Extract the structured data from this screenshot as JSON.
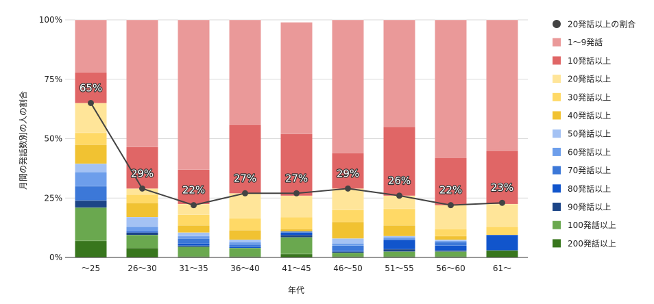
{
  "chart_data": {
    "type": "bar",
    "stacked": true,
    "xlabel": "年代",
    "ylabel": "月間の発話数別の人の割合",
    "ylim": [
      0,
      100
    ],
    "yticks": [
      "0%",
      "25%",
      "50%",
      "75%",
      "100%"
    ],
    "categories": [
      "〜25",
      "26〜30",
      "31〜35",
      "36〜40",
      "41〜45",
      "46〜50",
      "51〜55",
      "56〜60",
      "61〜"
    ],
    "series": [
      {
        "name": "200発話以上",
        "color": "#38761d",
        "values": [
          7,
          4,
          0.5,
          0.5,
          1.5,
          0.5,
          0.5,
          0.5,
          3
        ]
      },
      {
        "name": "100発話以上",
        "color": "#6aa84f",
        "values": [
          14,
          5.5,
          4,
          3.5,
          7,
          1.5,
          2,
          2,
          0
        ]
      },
      {
        "name": "90発話以上",
        "color": "#1c4587",
        "values": [
          3,
          1,
          0.5,
          0,
          1,
          0.5,
          1,
          0.5,
          0
        ]
      },
      {
        "name": "80発話以上",
        "color": "#1155cc",
        "values": [
          0,
          0.5,
          1,
          0.5,
          1,
          0.5,
          4,
          2,
          6.5
        ]
      },
      {
        "name": "70発話以上",
        "color": "#3c78d8",
        "values": [
          6,
          0,
          2,
          1,
          0.5,
          2,
          0,
          1.5,
          0
        ]
      },
      {
        "name": "60発話以上",
        "color": "#6d9eeb",
        "values": [
          6,
          2,
          1,
          1,
          0,
          1,
          1,
          0.5,
          0
        ]
      },
      {
        "name": "50発話以上",
        "color": "#a4c2f4",
        "values": [
          3.5,
          4,
          1.5,
          1,
          0,
          2,
          0.5,
          0.5,
          0
        ]
      },
      {
        "name": "40発話以上",
        "color": "#f1c232",
        "values": [
          8,
          6,
          3,
          4,
          1,
          7,
          4.5,
          1.5,
          0
        ]
      },
      {
        "name": "30発話以上",
        "color": "#ffd966",
        "values": [
          5,
          3.5,
          4.5,
          5,
          5,
          5,
          7,
          3,
          3.5
        ]
      },
      {
        "name": "20発話以上",
        "color": "#ffe599",
        "values": [
          12.5,
          2.5,
          4.5,
          10.5,
          9,
          9,
          5.5,
          10,
          9.5
        ]
      },
      {
        "name": "10発話以上",
        "color": "#e06666",
        "values": [
          13,
          17.5,
          14.5,
          29,
          26,
          15,
          29,
          20,
          22.5
        ]
      },
      {
        "name": "1〜9発話",
        "color": "#ea9999",
        "values": [
          22,
          53.5,
          63,
          44,
          47,
          56,
          45,
          58,
          55
        ]
      }
    ],
    "line_series": {
      "name": "20発話以上の割合",
      "color": "#434343",
      "values": [
        65,
        29,
        22,
        27,
        27,
        29,
        26,
        22,
        23
      ],
      "labels": [
        "65%",
        "29%",
        "22%",
        "27%",
        "27%",
        "29%",
        "26%",
        "22%",
        "23%"
      ]
    },
    "legend_position": "right",
    "legend": [
      {
        "name": "20発話以上の割合",
        "color": "#434343",
        "shape": "circle"
      },
      {
        "name": "1〜9発話",
        "color": "#ea9999",
        "shape": "square"
      },
      {
        "name": "10発話以上",
        "color": "#e06666",
        "shape": "square"
      },
      {
        "name": "20発話以上",
        "color": "#ffe599",
        "shape": "square"
      },
      {
        "name": "30発話以上",
        "color": "#ffd966",
        "shape": "square"
      },
      {
        "name": "40発話以上",
        "color": "#f1c232",
        "shape": "square"
      },
      {
        "name": "50発話以上",
        "color": "#a4c2f4",
        "shape": "square"
      },
      {
        "name": "60発話以上",
        "color": "#6d9eeb",
        "shape": "square"
      },
      {
        "name": "70発話以上",
        "color": "#3c78d8",
        "shape": "square"
      },
      {
        "name": "80発話以上",
        "color": "#1155cc",
        "shape": "square"
      },
      {
        "name": "90発話以上",
        "color": "#1c4587",
        "shape": "square"
      },
      {
        "name": "100発話以上",
        "color": "#6aa84f",
        "shape": "square"
      },
      {
        "name": "200発話以上",
        "color": "#38761d",
        "shape": "square"
      }
    ]
  }
}
